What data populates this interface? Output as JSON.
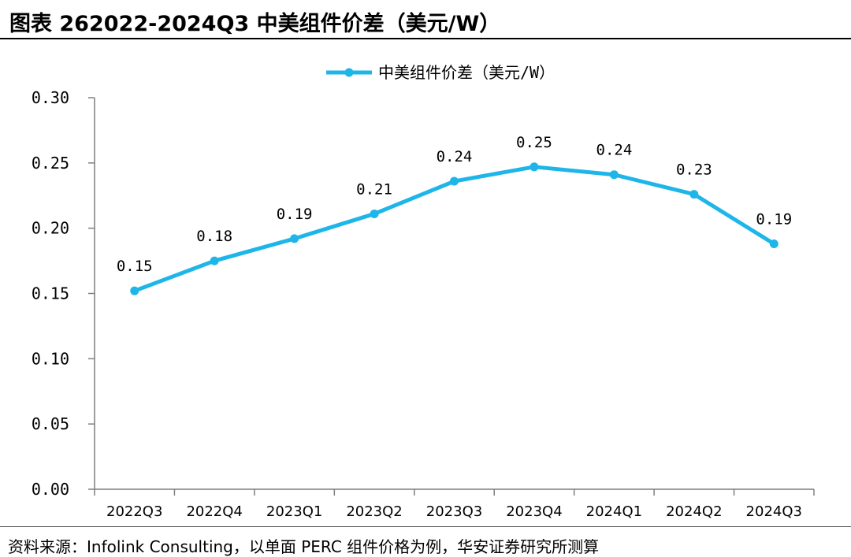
{
  "header": {
    "title": "图表 262022-2024Q3 中美组件价差（美元/W）"
  },
  "footer": {
    "source": "资料来源：Infolink Consulting，以单面 PERC 组件价格为例，华安证券研究所测算"
  },
  "chart_data": {
    "type": "line",
    "title": "",
    "xlabel": "",
    "ylabel": "",
    "categories": [
      "2022Q3",
      "2022Q4",
      "2023Q1",
      "2023Q2",
      "2023Q3",
      "2023Q4",
      "2024Q1",
      "2024Q2",
      "2024Q3"
    ],
    "series": [
      {
        "name": "中美组件价差（美元/W）",
        "values": [
          0.152,
          0.175,
          0.192,
          0.211,
          0.236,
          0.247,
          0.241,
          0.226,
          0.188
        ],
        "labels": [
          "0.15",
          "0.18",
          "0.19",
          "0.21",
          "0.24",
          "0.25",
          "0.24",
          "0.23",
          "0.19"
        ],
        "color": "#1EB6E8"
      }
    ],
    "ylim": [
      0,
      0.3
    ],
    "yticks": [
      "0.00",
      "0.05",
      "0.10",
      "0.15",
      "0.20",
      "0.25",
      "0.30"
    ],
    "grid": false,
    "legend_position": "top-center"
  }
}
